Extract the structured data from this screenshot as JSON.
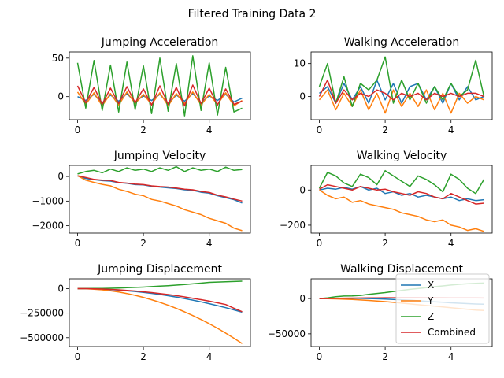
{
  "figure": {
    "suptitle": "Filtered Training Data 2"
  },
  "colors": {
    "X": "#1f77b4",
    "Y": "#ff7f0e",
    "Z": "#2ca02c",
    "Combined": "#d62728"
  },
  "chart_data": [
    {
      "type": "line",
      "title": "Jumping Acceleration",
      "xlim": [
        -0.25,
        5.25
      ],
      "ylim": [
        -30,
        58
      ],
      "xticks": [
        0,
        2,
        4
      ],
      "yticks": [
        0,
        50
      ],
      "ytick_labels": [
        "0",
        "50"
      ],
      "x": [
        0,
        0.25,
        0.5,
        0.75,
        1.0,
        1.25,
        1.5,
        1.75,
        2.0,
        2.25,
        2.5,
        2.75,
        3.0,
        3.25,
        3.5,
        3.75,
        4.0,
        4.25,
        4.5,
        4.75,
        5.0
      ],
      "series": [
        {
          "name": "X",
          "values": [
            0,
            -5,
            3,
            -8,
            2,
            -6,
            4,
            -7,
            1,
            -5,
            3,
            -9,
            2,
            -6,
            4,
            -8,
            1,
            -5,
            3,
            -7,
            -2
          ]
        },
        {
          "name": "Y",
          "values": [
            6,
            -10,
            5,
            -12,
            4,
            -11,
            6,
            -9,
            3,
            -10,
            5,
            -12,
            4,
            -9,
            6,
            -11,
            3,
            -10,
            5,
            -12,
            -5
          ]
        },
        {
          "name": "Z",
          "values": [
            44,
            -15,
            47,
            -18,
            41,
            -20,
            45,
            -17,
            40,
            -22,
            50,
            -19,
            43,
            -25,
            53,
            -18,
            44,
            -24,
            38,
            -20,
            -15
          ]
        },
        {
          "name": "Combined",
          "values": [
            14,
            -8,
            12,
            -10,
            11,
            -9,
            13,
            -8,
            10,
            -11,
            14,
            -10,
            12,
            -12,
            15,
            -9,
            11,
            -11,
            10,
            -10,
            -6
          ]
        }
      ]
    },
    {
      "type": "line",
      "title": "Walking Acceleration",
      "xlim": [
        -0.25,
        5.25
      ],
      "ylim": [
        -7,
        13.5
      ],
      "xticks": [
        0,
        2,
        4
      ],
      "yticks": [
        0,
        10
      ],
      "ytick_labels": [
        "0",
        "10"
      ],
      "x": [
        0,
        0.25,
        0.5,
        0.75,
        1.0,
        1.25,
        1.5,
        1.75,
        2.0,
        2.25,
        2.5,
        2.75,
        3.0,
        3.25,
        3.5,
        3.75,
        4.0,
        4.25,
        4.5,
        4.75,
        5.0
      ],
      "series": [
        {
          "name": "X",
          "values": [
            1,
            3,
            -2,
            4,
            -1,
            3,
            -2,
            5,
            -1,
            4,
            -2,
            3,
            4,
            -1,
            3,
            -2,
            4,
            -1,
            3,
            -1,
            0
          ]
        },
        {
          "name": "Y",
          "values": [
            -1,
            2,
            -4,
            1,
            -3,
            2,
            -4,
            1,
            -5,
            2,
            -3,
            1,
            -3,
            2,
            -4,
            1,
            -5,
            1,
            -2,
            0,
            -1
          ]
        },
        {
          "name": "Z",
          "values": [
            3,
            10,
            -2,
            6,
            -3,
            4,
            2,
            5,
            12,
            -2,
            5,
            -1,
            4,
            -2,
            3,
            -1,
            4,
            0,
            2,
            11,
            0
          ]
        },
        {
          "name": "Combined",
          "values": [
            0,
            5,
            -2,
            2,
            -1,
            1,
            0,
            2,
            1,
            -1,
            1,
            0,
            1,
            -1,
            1,
            0,
            1,
            0,
            1,
            1,
            0
          ]
        }
      ]
    },
    {
      "type": "line",
      "title": "Jumping Velocity",
      "xlim": [
        -0.25,
        5.25
      ],
      "ylim": [
        -2300,
        450
      ],
      "xticks": [
        0,
        2,
        4
      ],
      "yticks": [
        0,
        -1000,
        -2000
      ],
      "ytick_labels": [
        "0",
        "−1000",
        "−2000"
      ],
      "x": [
        0,
        0.25,
        0.5,
        0.75,
        1.0,
        1.25,
        1.5,
        1.75,
        2.0,
        2.25,
        2.5,
        2.75,
        3.0,
        3.25,
        3.5,
        3.75,
        4.0,
        4.25,
        4.5,
        4.75,
        5.0
      ],
      "series": [
        {
          "name": "X",
          "values": [
            20,
            -80,
            -130,
            -170,
            -190,
            -250,
            -280,
            -330,
            -340,
            -400,
            -430,
            -460,
            -490,
            -540,
            -560,
            -640,
            -680,
            -780,
            -860,
            -940,
            -1080
          ]
        },
        {
          "name": "Y",
          "values": [
            30,
            -150,
            -240,
            -320,
            -380,
            -520,
            -610,
            -720,
            -780,
            -930,
            -1000,
            -1100,
            -1200,
            -1350,
            -1450,
            -1550,
            -1700,
            -1800,
            -1900,
            -2100,
            -2200
          ]
        },
        {
          "name": "Z",
          "values": [
            100,
            200,
            250,
            150,
            300,
            200,
            350,
            250,
            300,
            200,
            350,
            250,
            400,
            200,
            350,
            250,
            300,
            200,
            380,
            250,
            280
          ]
        },
        {
          "name": "Combined",
          "values": [
            30,
            -40,
            -120,
            -150,
            -160,
            -240,
            -270,
            -310,
            -330,
            -380,
            -410,
            -430,
            -470,
            -520,
            -540,
            -610,
            -650,
            -760,
            -830,
            -920,
            -1000
          ]
        }
      ]
    },
    {
      "type": "line",
      "title": "Walking Velocity",
      "xlim": [
        -0.25,
        5.25
      ],
      "ylim": [
        -245,
        140
      ],
      "xticks": [
        0,
        2,
        4
      ],
      "yticks": [
        0,
        -200
      ],
      "ytick_labels": [
        "0",
        "−200"
      ],
      "x": [
        0,
        0.25,
        0.5,
        0.75,
        1.0,
        1.25,
        1.5,
        1.75,
        2.0,
        2.25,
        2.5,
        2.75,
        3.0,
        3.25,
        3.5,
        3.75,
        4.0,
        4.25,
        4.5,
        4.75,
        5.0
      ],
      "series": [
        {
          "name": "X",
          "values": [
            0,
            10,
            5,
            15,
            5,
            20,
            0,
            10,
            -20,
            -10,
            -30,
            -20,
            -40,
            -30,
            -40,
            -50,
            -40,
            -60,
            -50,
            -60,
            -55
          ]
        },
        {
          "name": "Y",
          "values": [
            0,
            -30,
            -50,
            -40,
            -70,
            -60,
            -80,
            -90,
            -100,
            -110,
            -130,
            -140,
            -150,
            -170,
            -180,
            -170,
            -200,
            -210,
            -230,
            -220,
            -235
          ]
        },
        {
          "name": "Z",
          "values": [
            10,
            100,
            80,
            40,
            20,
            90,
            70,
            30,
            110,
            80,
            50,
            20,
            80,
            60,
            30,
            -10,
            90,
            60,
            10,
            -20,
            60
          ]
        },
        {
          "name": "Combined",
          "values": [
            5,
            30,
            20,
            10,
            0,
            20,
            10,
            0,
            5,
            -10,
            -20,
            -30,
            -10,
            -20,
            -40,
            -50,
            -20,
            -40,
            -60,
            -80,
            -75
          ]
        }
      ]
    },
    {
      "type": "line",
      "title": "Jumping Displacement",
      "xlim": [
        -0.25,
        5.25
      ],
      "ylim": [
        -590000,
        100000
      ],
      "xticks": [
        0,
        2,
        4
      ],
      "yticks": [
        0,
        -250000,
        -500000
      ],
      "ytick_labels": [
        "0",
        "−250000",
        "−500000"
      ],
      "x": [
        0,
        0.25,
        0.5,
        0.75,
        1.0,
        1.25,
        1.5,
        1.75,
        2.0,
        2.25,
        2.5,
        2.75,
        3.0,
        3.25,
        3.5,
        3.75,
        4.0,
        4.25,
        4.5,
        4.75,
        5.0
      ],
      "series": [
        {
          "name": "X",
          "values": [
            0,
            -600,
            -2400,
            -5400,
            -9600,
            -15000,
            -21600,
            -29400,
            -38400,
            -48600,
            -60000,
            -72600,
            -86400,
            -101400,
            -117600,
            -135000,
            -153600,
            -173400,
            -194400,
            -216600,
            -240000
          ]
        },
        {
          "name": "Y",
          "values": [
            0,
            -1400,
            -5600,
            -12600,
            -22400,
            -35000,
            -50400,
            -68600,
            -89600,
            -113400,
            -140000,
            -169400,
            -201600,
            -236600,
            -274400,
            -315000,
            -358400,
            -404600,
            -453600,
            -505400,
            -560000
          ]
        },
        {
          "name": "Z",
          "values": [
            0,
            250,
            1000,
            2250,
            4000,
            6250,
            9000,
            12250,
            16000,
            20250,
            25000,
            30250,
            36000,
            42250,
            49000,
            56250,
            64000,
            67000,
            70000,
            73000,
            76000
          ]
        },
        {
          "name": "Combined",
          "values": [
            0,
            -500,
            -2000,
            -4500,
            -8000,
            -12500,
            -18000,
            -24500,
            -32000,
            -40500,
            -50000,
            -60500,
            -72000,
            -84500,
            -98000,
            -112500,
            -128000,
            -144500,
            -162000,
            -200000,
            -235000
          ]
        }
      ]
    },
    {
      "type": "line",
      "title": "Walking Displacement",
      "xlim": [
        -0.25,
        5.25
      ],
      "ylim": [
        -68000,
        28000
      ],
      "xticks": [
        0,
        2,
        4
      ],
      "yticks": [
        0,
        -50000
      ],
      "ytick_labels": [
        "0",
        "−50000"
      ],
      "legend": "lower-right",
      "legend_entries": [
        "X",
        "Y",
        "Z",
        "Combined"
      ],
      "x": [
        0,
        0.25,
        0.5,
        0.75,
        1.0,
        1.25,
        1.5,
        1.75,
        2.0,
        2.25,
        2.5,
        2.75,
        3.0,
        3.25,
        3.5,
        3.75,
        4.0,
        4.25,
        4.5,
        4.75,
        5.0
      ],
      "series": [
        {
          "name": "X",
          "values": [
            0,
            100,
            200,
            300,
            300,
            200,
            0,
            -300,
            -700,
            -1200,
            -1800,
            -2500,
            -3200,
            -3900,
            -4600,
            -5300,
            -6000,
            -6600,
            -7200,
            -7700,
            -8000
          ]
        },
        {
          "name": "Y",
          "values": [
            0,
            -200,
            -500,
            -900,
            -1400,
            -2000,
            -2700,
            -3500,
            -4400,
            -5400,
            -6500,
            -7600,
            -8700,
            -9800,
            -10900,
            -12000,
            -13100,
            -14200,
            -15300,
            -16300,
            -17000
          ]
        },
        {
          "name": "Z",
          "values": [
            0,
            1000,
            2500,
            3500,
            3800,
            4500,
            6000,
            7200,
            8500,
            10000,
            11500,
            13000,
            14200,
            15500,
            16800,
            18000,
            19200,
            20200,
            21000,
            21500,
            22000
          ]
        },
        {
          "name": "Combined",
          "values": [
            0,
            100,
            300,
            500,
            700,
            800,
            900,
            1000,
            1100,
            1150,
            1200,
            1200,
            1180,
            1150,
            1100,
            1050,
            1000,
            950,
            900,
            850,
            800
          ]
        }
      ]
    }
  ]
}
